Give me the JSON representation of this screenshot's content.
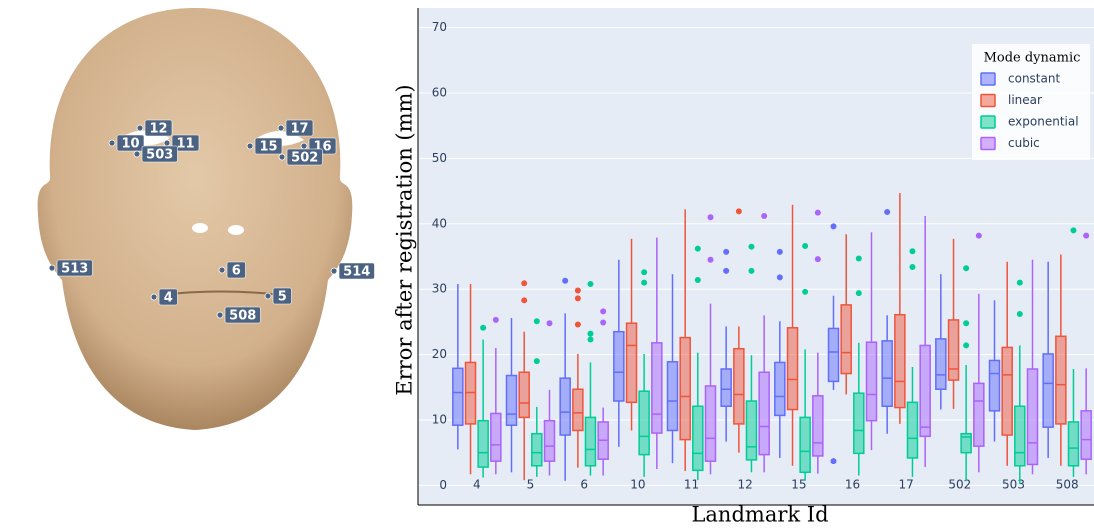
{
  "face": {
    "landmarks": [
      "12",
      "10",
      "11",
      "503",
      "17",
      "15",
      "16",
      "502",
      "6",
      "513",
      "514",
      "4",
      "5",
      "508"
    ]
  },
  "chart_data": {
    "type": "box",
    "ylabel": "Error after registration (mm)",
    "xlabel": "Landmark Id",
    "legend_title": "Mode dynamic",
    "legend": "upper right",
    "grid": true,
    "categories": [
      "4",
      "5",
      "6",
      "10",
      "11",
      "12",
      "15",
      "16",
      "17",
      "502",
      "503",
      "508"
    ],
    "ylim": [
      -3,
      73
    ],
    "yticks": [
      0,
      10,
      20,
      30,
      40,
      50,
      60,
      70
    ],
    "series": [
      {
        "name": "constant",
        "color": "#636efa",
        "min": [
          5.5,
          2,
          0.7,
          5.9,
          3.4,
          6.7,
          4.2,
          14.6,
          7.9,
          11.6,
          6.7,
          4.2
        ],
        "q1": [
          9.2,
          9.2,
          7.7,
          12.9,
          8.4,
          12.1,
          10.7,
          15.9,
          12.1,
          14.7,
          11.4,
          8.9
        ],
        "median": [
          14.2,
          10.9,
          11.2,
          17.3,
          12.9,
          14.7,
          13.6,
          20.4,
          16.4,
          16.9,
          17.1,
          15.6
        ],
        "q3": [
          17.9,
          16.8,
          16.4,
          23.5,
          18.9,
          17.8,
          18.8,
          24,
          22.1,
          22.4,
          19.1,
          20.1
        ],
        "max": [
          30.8,
          25.6,
          26.3,
          34.5,
          32.3,
          24.3,
          25.1,
          29,
          26,
          32.3,
          28.3,
          34.2
        ],
        "outliers": [
          [],
          [],
          [
            31.3
          ],
          [],
          [],
          [
            35.7,
            32.8
          ],
          [
            35.7,
            31.8
          ],
          [
            39.6,
            3.7
          ],
          [
            41.8
          ],
          [],
          [],
          []
        ]
      },
      {
        "name": "linear",
        "color": "#ef553b",
        "min": [
          1.7,
          0.8,
          2.7,
          8.4,
          2.2,
          5,
          3,
          13.9,
          9.4,
          11.7,
          3,
          3
        ],
        "q1": [
          9.4,
          10.4,
          8.4,
          12.7,
          7,
          9.4,
          11.6,
          17.1,
          11.9,
          16.1,
          7.7,
          9.4
        ],
        "median": [
          14.2,
          12.6,
          11.1,
          21.4,
          13.6,
          13.9,
          16.2,
          20.3,
          15.9,
          17.8,
          16.9,
          15.4
        ],
        "q3": [
          18.8,
          17.3,
          14.7,
          24.8,
          22.6,
          20.9,
          24.1,
          27.6,
          26.1,
          25.3,
          21.1,
          22.8
        ],
        "max": [
          30.8,
          23.5,
          20.1,
          37.7,
          42.2,
          24.3,
          42.9,
          38.4,
          44.7,
          37.7,
          34.2,
          35.3
        ],
        "outliers": [
          [],
          [
            30.9,
            28.3
          ],
          [
            29.8,
            28.6,
            24.6
          ],
          [],
          [],
          [
            41.9
          ],
          [],
          [],
          [],
          [],
          [],
          []
        ]
      },
      {
        "name": "exponential",
        "color": "#00cc96",
        "min": [
          1.2,
          1.3,
          1.5,
          1.3,
          0.8,
          2,
          0.7,
          1.5,
          1.3,
          0.7,
          0.2,
          1.3
        ],
        "q1": [
          2.8,
          3,
          3,
          4.7,
          2.3,
          3.9,
          2,
          4.9,
          4.2,
          5,
          3,
          3
        ],
        "median": [
          5,
          5,
          5.5,
          7.5,
          4.9,
          5.9,
          5.2,
          8.4,
          7.2,
          7.4,
          5,
          5.7
        ],
        "q3": [
          9.9,
          7.9,
          10.4,
          14.4,
          12.1,
          12.9,
          10.4,
          14.1,
          12.7,
          7.9,
          12.1,
          9.7
        ],
        "max": [
          22.3,
          12,
          18.8,
          20.1,
          20.3,
          19.9,
          20.8,
          21.8,
          18.1,
          18.4,
          21.4,
          17.8
        ],
        "outliers": [
          [
            24.1
          ],
          [
            25.1,
            19
          ],
          [
            30.8,
            23.2,
            22.3
          ],
          [
            32.6,
            31
          ],
          [
            36.2,
            31.4
          ],
          [
            36.5,
            32.8
          ],
          [
            36.6,
            29.6
          ],
          [
            34.7,
            29.4
          ],
          [
            35.8,
            33.4
          ],
          [
            33.2,
            24.8,
            21.4
          ],
          [
            31,
            26.2
          ],
          [
            39
          ]
        ]
      },
      {
        "name": "cubic",
        "color": "#ab63fa",
        "min": [
          1.7,
          1.5,
          1.5,
          2.5,
          1.7,
          2,
          1.8,
          5.4,
          2.8,
          2,
          1.7,
          1.7
        ],
        "q1": [
          3.7,
          3.7,
          4,
          8,
          3.7,
          4.7,
          4.5,
          9.9,
          7.5,
          6,
          3.2,
          4
        ],
        "median": [
          6.2,
          6,
          6.9,
          10.9,
          7.2,
          9,
          6.5,
          13.9,
          8.9,
          12.9,
          6.5,
          7
        ],
        "q3": [
          11,
          9.9,
          9.7,
          21.8,
          15.2,
          17.3,
          13.7,
          21.9,
          21.4,
          15.6,
          17.8,
          11.4
        ],
        "max": [
          21,
          14.6,
          11.9,
          37.9,
          27.8,
          26,
          20.3,
          38.7,
          41.2,
          29.3,
          34.5,
          17.9
        ],
        "outliers": [
          [
            25.3
          ],
          [
            24.8
          ],
          [
            26.6,
            24.9
          ],
          [],
          [
            41,
            34.5
          ],
          [
            41.2
          ],
          [
            41.7,
            34.6
          ],
          [],
          [],
          [
            38.2
          ],
          [],
          [
            38.2
          ]
        ]
      }
    ]
  }
}
